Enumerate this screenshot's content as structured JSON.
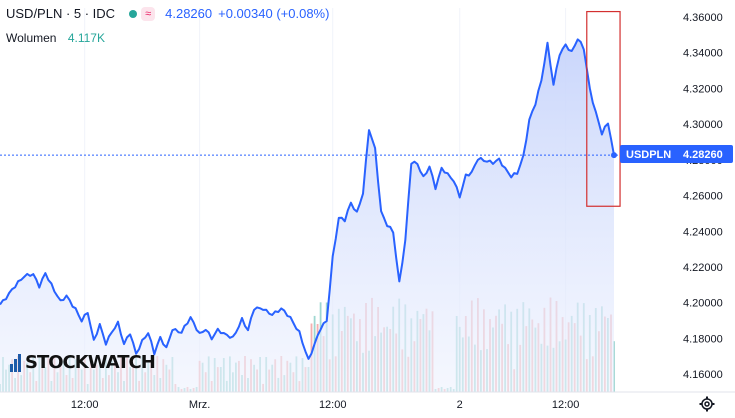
{
  "header": {
    "symbol": "USD/PLN · 5 · IDC",
    "badge_icon": "≈",
    "price": "4.28260",
    "change": "+0.00340 (+0.08%)",
    "volume_label": "Wolumen",
    "volume_value": "4.117K"
  },
  "price_tag": {
    "label": "USDPLN",
    "value": "4.28260"
  },
  "watermark": "STOCKWATCH",
  "colors": {
    "line": "#2962ff",
    "area_top": "#c7d4fb",
    "area_bottom": "#eef2fe",
    "vol_up": "#93d3cc",
    "vol_down": "#f4a6a6",
    "highlight_box": "#d32f2f",
    "tag_bg": "#2962ff"
  },
  "chart_data": {
    "type": "line",
    "series_name": "USDPLN",
    "ylim": [
      4.15,
      4.365
    ],
    "yticks": [
      "4.36000",
      "4.34000",
      "4.32000",
      "4.30000",
      "4.28000",
      "4.26000",
      "4.24000",
      "4.22000",
      "4.20000",
      "4.18000",
      "4.16000"
    ],
    "ytick_values": [
      4.36,
      4.34,
      4.32,
      4.3,
      4.28,
      4.26,
      4.24,
      4.22,
      4.2,
      4.18,
      4.16
    ],
    "xticks": [
      {
        "label": "12:00",
        "bar": 28
      },
      {
        "label": "Mrz.",
        "bar": 66
      },
      {
        "label": "12:00",
        "bar": 110
      },
      {
        "label": "2",
        "bar": 152
      },
      {
        "label": "12:00",
        "bar": 187
      }
    ],
    "bar_count": 204,
    "last_price": 4.2826,
    "price_points": [
      [
        0,
        4.199
      ],
      [
        4,
        4.208
      ],
      [
        8,
        4.214
      ],
      [
        11,
        4.216
      ],
      [
        13,
        4.21
      ],
      [
        15,
        4.217
      ],
      [
        18,
        4.206
      ],
      [
        20,
        4.2
      ],
      [
        22,
        4.204
      ],
      [
        25,
        4.197
      ],
      [
        27,
        4.19
      ],
      [
        29,
        4.194
      ],
      [
        31,
        4.178
      ],
      [
        33,
        4.188
      ],
      [
        35,
        4.178
      ],
      [
        37,
        4.184
      ],
      [
        39,
        4.188
      ],
      [
        41,
        4.176
      ],
      [
        43,
        4.183
      ],
      [
        45,
        4.172
      ],
      [
        47,
        4.179
      ],
      [
        49,
        4.183
      ],
      [
        51,
        4.171
      ],
      [
        53,
        4.18
      ],
      [
        55,
        4.175
      ],
      [
        57,
        4.186
      ],
      [
        60,
        4.183
      ],
      [
        63,
        4.191
      ],
      [
        66,
        4.183
      ],
      [
        68,
        4.186
      ],
      [
        70,
        4.18
      ],
      [
        72,
        4.184
      ],
      [
        74,
        4.182
      ],
      [
        77,
        4.181
      ],
      [
        80,
        4.191
      ],
      [
        82,
        4.184
      ],
      [
        84,
        4.196
      ],
      [
        87,
        4.197
      ],
      [
        90,
        4.194
      ],
      [
        93,
        4.196
      ],
      [
        96,
        4.191
      ],
      [
        99,
        4.184
      ],
      [
        102,
        4.168
      ],
      [
        104,
        4.176
      ],
      [
        106,
        4.185
      ],
      [
        108,
        4.19
      ],
      [
        110,
        4.226
      ],
      [
        112,
        4.248
      ],
      [
        114,
        4.246
      ],
      [
        116,
        4.255
      ],
      [
        118,
        4.25
      ],
      [
        120,
        4.262
      ],
      [
        122,
        4.298
      ],
      [
        124,
        4.286
      ],
      [
        126,
        4.25
      ],
      [
        128,
        4.243
      ],
      [
        130,
        4.24
      ],
      [
        132,
        4.212
      ],
      [
        134,
        4.235
      ],
      [
        136,
        4.278
      ],
      [
        138,
        4.277
      ],
      [
        140,
        4.27
      ],
      [
        142,
        4.277
      ],
      [
        144,
        4.265
      ],
      [
        146,
        4.275
      ],
      [
        148,
        4.271
      ],
      [
        150,
        4.268
      ],
      [
        152,
        4.26
      ],
      [
        154,
        4.272
      ],
      [
        156,
        4.273
      ],
      [
        158,
        4.28
      ],
      [
        160,
        4.279
      ],
      [
        163,
        4.279
      ],
      [
        165,
        4.281
      ],
      [
        167,
        4.275
      ],
      [
        169,
        4.27
      ],
      [
        171,
        4.272
      ],
      [
        173,
        4.282
      ],
      [
        175,
        4.303
      ],
      [
        177,
        4.312
      ],
      [
        179,
        4.324
      ],
      [
        181,
        4.344
      ],
      [
        183,
        4.322
      ],
      [
        185,
        4.34
      ],
      [
        187,
        4.345
      ],
      [
        189,
        4.34
      ],
      [
        191,
        4.347
      ],
      [
        193,
        4.342
      ],
      [
        195,
        4.32
      ],
      [
        197,
        4.307
      ],
      [
        199,
        4.295
      ],
      [
        201,
        4.3
      ],
      [
        203,
        4.2826
      ]
    ],
    "highlight_box": {
      "bar_from": 194,
      "bar_to": 205,
      "price_from": 4.254,
      "price_to": 4.363
    }
  }
}
